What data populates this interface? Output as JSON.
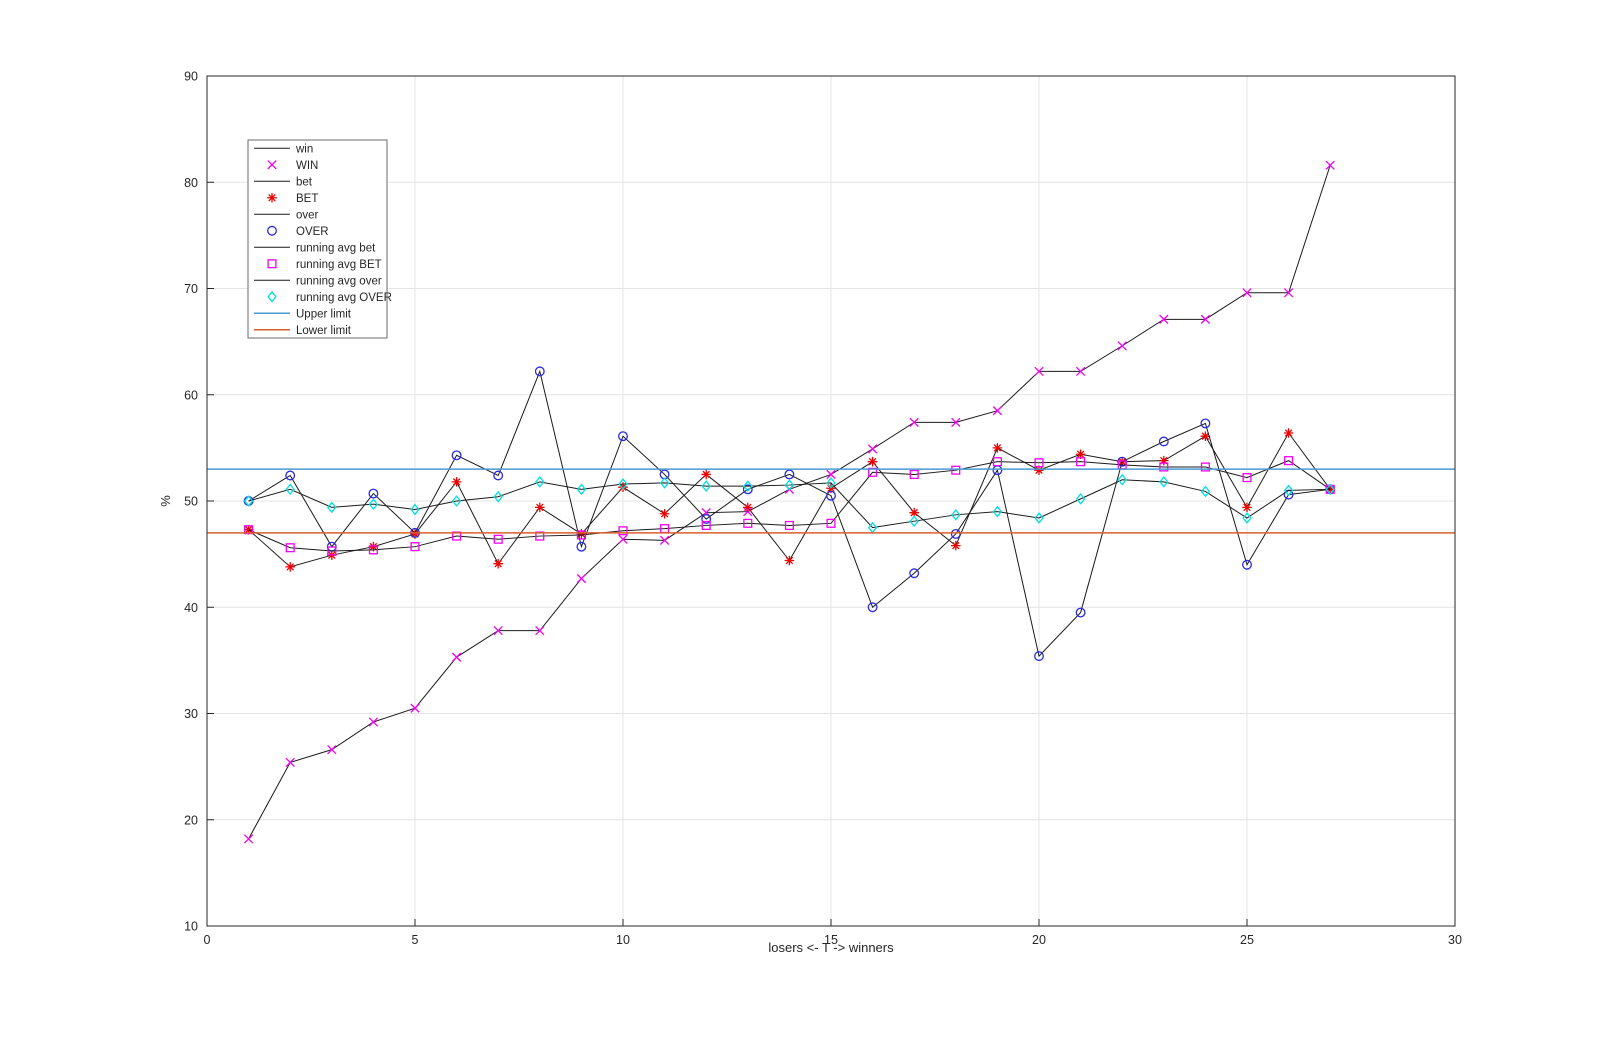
{
  "figure": {
    "background": "#ffffff",
    "axis_color": "#262626",
    "grid_color": "#e4e4e4",
    "legend_border_color": "#6b6b6b"
  },
  "chart_data": {
    "type": "line",
    "title": "",
    "xlabel": "losers <- T -> winners",
    "ylabel": "%",
    "xlim": [
      0,
      30
    ],
    "ylim": [
      10,
      90
    ],
    "xticks": [
      0,
      5,
      10,
      15,
      20,
      25,
      30
    ],
    "yticks": [
      10,
      20,
      30,
      40,
      50,
      60,
      70,
      80,
      90
    ],
    "grid": true,
    "legend_position": "upper-left-inside",
    "x": [
      1,
      2,
      3,
      4,
      5,
      6,
      7,
      8,
      9,
      10,
      11,
      12,
      13,
      14,
      15,
      16,
      17,
      18,
      19,
      20,
      21,
      22,
      23,
      24,
      25,
      26,
      27
    ],
    "series": [
      {
        "name": "win",
        "kind": "line",
        "color": "#1a1a1a",
        "values": [
          18.2,
          25.4,
          26.6,
          29.2,
          30.5,
          35.3,
          37.8,
          37.8,
          42.7,
          46.4,
          46.3,
          48.9,
          49.0,
          51.1,
          52.5,
          54.9,
          57.4,
          57.4,
          58.5,
          62.2,
          62.2,
          64.6,
          67.1,
          67.1,
          69.6,
          69.6,
          81.6
        ]
      },
      {
        "name": "WIN",
        "kind": "marker",
        "marker": "x",
        "color": "#f400f4",
        "values": [
          18.2,
          25.4,
          26.6,
          29.2,
          30.5,
          35.3,
          37.8,
          37.8,
          42.7,
          46.4,
          46.3,
          48.9,
          49.0,
          51.1,
          52.5,
          54.9,
          57.4,
          57.4,
          58.5,
          62.2,
          62.2,
          64.6,
          67.1,
          67.1,
          69.6,
          69.6,
          81.6
        ]
      },
      {
        "name": "bet",
        "kind": "line",
        "color": "#1a1a1a",
        "values": [
          47.3,
          43.8,
          44.9,
          45.7,
          46.9,
          51.8,
          44.1,
          49.4,
          46.9,
          51.3,
          48.8,
          52.5,
          49.4,
          44.4,
          51.2,
          53.7,
          48.9,
          45.8,
          55.0,
          52.9,
          54.4,
          53.7,
          53.8,
          56.1,
          49.4,
          56.4,
          51.1
        ]
      },
      {
        "name": "BET",
        "kind": "marker",
        "marker": "asterisk",
        "color": "#ef0000",
        "values": [
          47.3,
          43.8,
          44.9,
          45.7,
          46.9,
          51.8,
          44.1,
          49.4,
          46.9,
          51.3,
          48.8,
          52.5,
          49.4,
          44.4,
          51.2,
          53.7,
          48.9,
          45.8,
          55.0,
          52.9,
          54.4,
          53.7,
          53.8,
          56.1,
          49.4,
          56.4,
          51.1
        ]
      },
      {
        "name": "over",
        "kind": "line",
        "color": "#1a1a1a",
        "values": [
          50.0,
          52.4,
          45.7,
          50.7,
          47.0,
          54.3,
          52.4,
          62.2,
          45.7,
          56.1,
          52.5,
          48.3,
          51.1,
          52.5,
          50.5,
          40.0,
          43.2,
          46.9,
          52.9,
          35.4,
          39.5,
          53.7,
          55.6,
          57.3,
          44.0,
          50.6,
          51.1
        ]
      },
      {
        "name": "OVER",
        "kind": "marker",
        "marker": "circle",
        "color": "#2a2ae0",
        "values": [
          50.0,
          52.4,
          45.7,
          50.7,
          47.0,
          54.3,
          52.4,
          62.2,
          45.7,
          56.1,
          52.5,
          48.3,
          51.1,
          52.5,
          50.5,
          40.0,
          43.2,
          46.9,
          52.9,
          35.4,
          39.5,
          53.7,
          55.6,
          57.3,
          44.0,
          50.6,
          51.1
        ]
      },
      {
        "name": "running avg bet",
        "kind": "line",
        "color": "#1a1a1a",
        "values": [
          47.3,
          45.6,
          45.3,
          45.4,
          45.7,
          46.7,
          46.4,
          46.7,
          46.8,
          47.2,
          47.4,
          47.7,
          47.9,
          47.7,
          47.9,
          52.7,
          52.5,
          52.9,
          53.7,
          53.6,
          53.7,
          53.4,
          53.2,
          53.2,
          52.2,
          53.8,
          51.1
        ]
      },
      {
        "name": "running avg BET",
        "kind": "marker",
        "marker": "square",
        "color": "#f400f4",
        "values": [
          47.3,
          45.6,
          45.3,
          45.4,
          45.7,
          46.7,
          46.4,
          46.7,
          46.8,
          47.2,
          47.4,
          47.7,
          47.9,
          47.7,
          47.9,
          52.7,
          52.5,
          52.9,
          53.7,
          53.6,
          53.7,
          53.4,
          53.2,
          53.2,
          52.2,
          53.8,
          51.1
        ]
      },
      {
        "name": "running avg over",
        "kind": "line",
        "color": "#1a1a1a",
        "values": [
          50.0,
          51.1,
          49.4,
          49.7,
          49.2,
          50.0,
          50.4,
          51.8,
          51.1,
          51.6,
          51.7,
          51.4,
          51.4,
          51.5,
          51.7,
          47.5,
          48.1,
          48.7,
          49.0,
          48.4,
          50.2,
          52.0,
          51.8,
          50.9,
          48.4,
          51.0,
          51.1
        ]
      },
      {
        "name": "running avg OVER",
        "kind": "marker",
        "marker": "diamond",
        "color": "#00e0e0",
        "values": [
          50.0,
          51.1,
          49.4,
          49.7,
          49.2,
          50.0,
          50.4,
          51.8,
          51.1,
          51.6,
          51.7,
          51.4,
          51.4,
          51.5,
          51.7,
          47.5,
          48.1,
          48.7,
          49.0,
          48.4,
          50.2,
          52.0,
          51.8,
          50.9,
          48.4,
          51.0,
          51.1
        ]
      },
      {
        "name": "Upper limit",
        "kind": "hline",
        "color": "#4a9ad4",
        "value": 53
      },
      {
        "name": "Lower limit",
        "kind": "hline",
        "color": "#d95f2b",
        "value": 47
      }
    ]
  }
}
